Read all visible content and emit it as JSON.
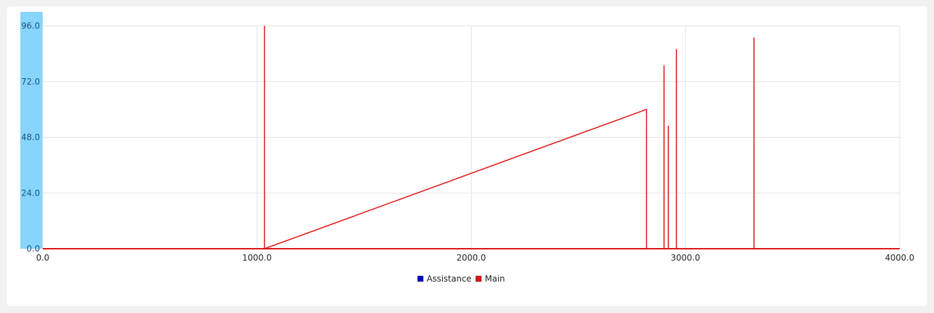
{
  "chart_data": {
    "type": "line",
    "title": "",
    "xlabel": "",
    "ylabel": "",
    "xlim": [
      0,
      4000
    ],
    "ylim": [
      0,
      96
    ],
    "x_ticks": [
      0,
      1000,
      2000,
      3000,
      4000
    ],
    "x_tick_labels": [
      "0.0",
      "1000.0",
      "2000.0",
      "3000.0",
      "4000.0"
    ],
    "y_ticks": [
      0,
      24,
      48,
      72,
      96
    ],
    "y_tick_labels": [
      "0.0",
      "24.0",
      "48.0",
      "72.0",
      "96.0"
    ],
    "grid": true,
    "legend_position": "bottom",
    "series": [
      {
        "name": "Assistance",
        "color": "#0000cc",
        "x": [],
        "y": []
      },
      {
        "name": "Main",
        "color": "#e01010",
        "x": [
          0,
          1035,
          1035,
          1035,
          2818,
          2818,
          2818,
          2900,
          2900,
          2900,
          2920,
          2920,
          2920,
          2958,
          2958,
          2958,
          3320,
          3320,
          3320,
          4000
        ],
        "y": [
          0,
          0,
          96,
          0,
          60,
          0,
          0,
          0,
          79,
          0,
          0,
          53,
          0,
          0,
          86,
          0,
          0,
          91,
          0,
          0
        ]
      }
    ],
    "axis_band_color": "#87d5fb",
    "grid_color": "#e3e3e3"
  }
}
